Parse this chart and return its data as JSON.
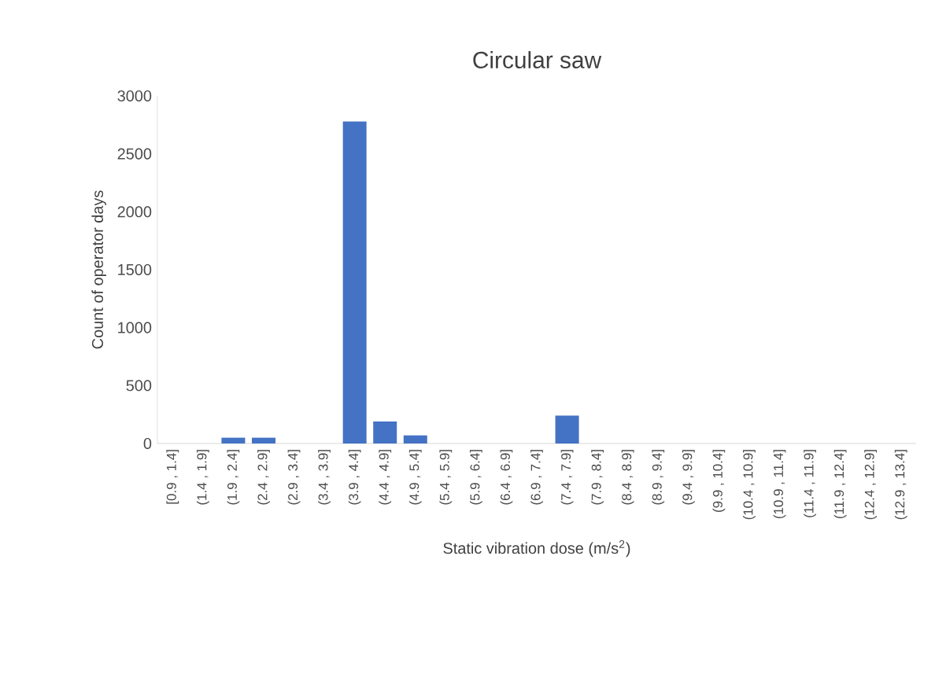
{
  "chart_data": {
    "type": "bar",
    "title": "Circular saw",
    "xlabel": "Static vibration dose (m/s$^{2}$)",
    "ylabel": "Count of operator days",
    "categories": [
      "[0.9 , 1.4]",
      "(1.4 , 1.9]",
      "(1.9 , 2.4]",
      "(2.4 , 2.9]",
      "(2.9 , 3.4]",
      "(3.4 , 3.9]",
      "(3.9 , 4.4]",
      "(4.4 , 4.9]",
      "(4.9 , 5.4]",
      "(5.4 , 5.9]",
      "(5.9 , 6.4]",
      "(6.4 , 6.9]",
      "(6.9 , 7.4]",
      "(7.4 , 7.9]",
      "(7.9 , 8.4]",
      "(8.4 , 8.9]",
      "(8.9 , 9.4]",
      "(9.4 , 9.9]",
      "(9.9 , 10.4]",
      "(10.4 , 10.9]",
      "(10.9 , 11.4]",
      "(11.4 , 11.9]",
      "(11.9 , 12.4]",
      "(12.4 , 12.9]",
      "(12.9 , 13.4]"
    ],
    "values": [
      0,
      0,
      50,
      50,
      0,
      0,
      2780,
      190,
      70,
      0,
      0,
      0,
      0,
      240,
      0,
      0,
      0,
      0,
      0,
      0,
      0,
      0,
      0,
      0,
      0
    ],
    "color": "#4472c4",
    "ylim": [
      0,
      3000
    ],
    "yticks": [
      0,
      500,
      1000,
      1500,
      2000,
      2500,
      3000
    ],
    "grid": false
  }
}
